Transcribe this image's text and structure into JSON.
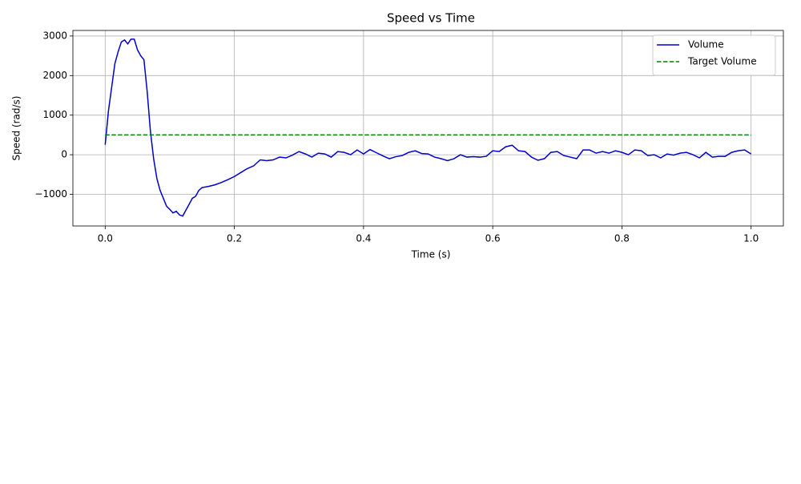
{
  "chart_data": {
    "type": "line",
    "title": "Speed vs Time",
    "xlabel": "Time (s)",
    "ylabel": "Speed (rad/s)",
    "xlim": [
      -0.05,
      1.05
    ],
    "ylim": [
      -1800,
      3140
    ],
    "xticks": [
      {
        "value": 0,
        "label": "0.0"
      },
      0.2,
      0.4,
      0.6,
      0.8,
      {
        "value": 1,
        "label": "1.0"
      }
    ],
    "yticks": [
      {
        "value": -1000,
        "label": "−1000"
      },
      0,
      1000,
      2000,
      3000
    ],
    "grid": true,
    "legend": "upper right",
    "series": [
      {
        "name": "Volume",
        "color": "#0000cd",
        "linestyle": "solid",
        "x": [
          0,
          0.005,
          0.01,
          0.015,
          0.02,
          0.025,
          0.03,
          0.035,
          0.04,
          0.045,
          0.05,
          0.055,
          0.06,
          0.065,
          0.07,
          0.075,
          0.08,
          0.085,
          0.09,
          0.095,
          0.1,
          0.105,
          0.11,
          0.115,
          0.12,
          0.125,
          0.13,
          0.135,
          0.14,
          0.145,
          0.15,
          0.16,
          0.17,
          0.18,
          0.19,
          0.2,
          0.21,
          0.22,
          0.23,
          0.24,
          0.25,
          0.26,
          0.27,
          0.28,
          0.29,
          0.3,
          0.31,
          0.32,
          0.33,
          0.34,
          0.35,
          0.36,
          0.37,
          0.38,
          0.39,
          0.4,
          0.41,
          0.42,
          0.43,
          0.44,
          0.45,
          0.46,
          0.47,
          0.48,
          0.49,
          0.5,
          0.51,
          0.52,
          0.53,
          0.54,
          0.55,
          0.56,
          0.57,
          0.58,
          0.59,
          0.6,
          0.61,
          0.62,
          0.63,
          0.64,
          0.65,
          0.66,
          0.67,
          0.68,
          0.69,
          0.7,
          0.71,
          0.72,
          0.73,
          0.74,
          0.75,
          0.76,
          0.77,
          0.78,
          0.79,
          0.8,
          0.81,
          0.82,
          0.83,
          0.84,
          0.85,
          0.86,
          0.87,
          0.88,
          0.89,
          0.9,
          0.91,
          0.92,
          0.93,
          0.94,
          0.95,
          0.96,
          0.97,
          0.98,
          0.99,
          1
        ],
        "values": [
          250,
          1100,
          1700,
          2300,
          2600,
          2850,
          2900,
          2800,
          2920,
          2920,
          2650,
          2500,
          2400,
          1600,
          600,
          -100,
          -600,
          -900,
          -1100,
          -1300,
          -1380,
          -1470,
          -1430,
          -1520,
          -1550,
          -1400,
          -1250,
          -1100,
          -1050,
          -900,
          -830,
          -800,
          -760,
          -700,
          -630,
          -550,
          -450,
          -350,
          -280,
          -130,
          -150,
          -130,
          -60,
          -80,
          -10,
          80,
          20,
          -60,
          40,
          20,
          -60,
          80,
          60,
          0,
          120,
          20,
          130,
          50,
          -30,
          -100,
          -50,
          -20,
          60,
          100,
          30,
          20,
          -60,
          -100,
          -150,
          -100,
          0,
          -60,
          -50,
          -60,
          -40,
          100,
          80,
          200,
          240,
          100,
          80,
          -60,
          -140,
          -100,
          60,
          80,
          -20,
          -60,
          -100,
          120,
          120,
          40,
          80,
          40,
          100,
          60,
          0,
          120,
          100,
          -20,
          0,
          -80,
          20,
          -10,
          40,
          60,
          0,
          -80,
          60,
          -60,
          -40,
          -40,
          60,
          100,
          120,
          20
        ]
      },
      {
        "name": "Target Volume",
        "color": "#008000",
        "linestyle": "dashed",
        "x": [
          0,
          1
        ],
        "values": [
          500,
          500
        ]
      }
    ]
  }
}
